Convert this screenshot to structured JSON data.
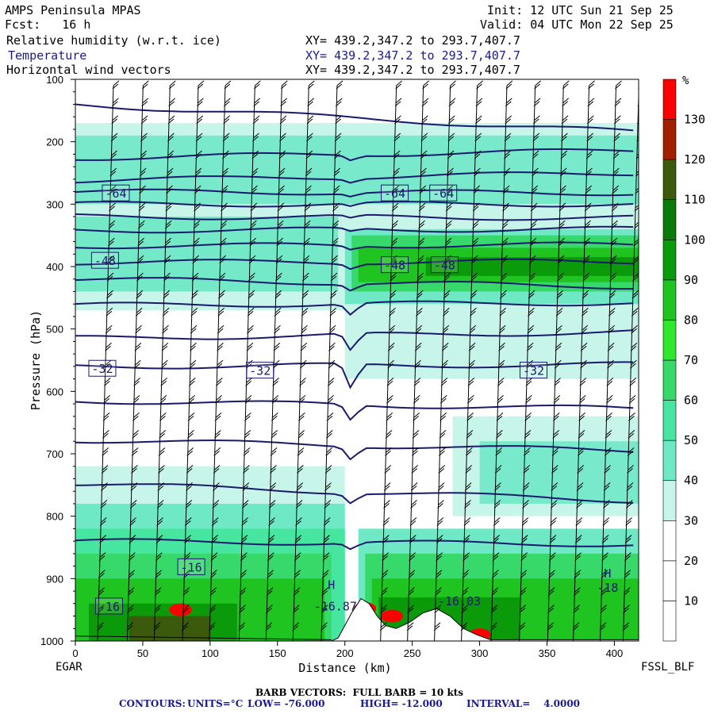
{
  "header": {
    "model": "AMPS Peninsula MPAS",
    "forecast": "Fcst:   16 h",
    "init": "Init: 12 UTC Sun 21 Sep 25",
    "valid": "Valid: 04 UTC Mon 22 Sep 25",
    "field1": "Relative humidity (w.r.t. ice)",
    "field2": "Temperature",
    "field3": "Horizontal wind vectors",
    "xy1": "XY= 439.2,347.2 to 293.7,407.7",
    "xy2": "XY= 439.2,347.2 to 293.7,407.7",
    "xy3": "XY= 439.2,347.2 to 293.7,407.7"
  },
  "footer": {
    "left_station": "EGAR",
    "right_station": "FSSL_BLF",
    "barb_note": "BARB VECTORS:  FULL BARB = 10 kts",
    "contours_label": "CONTOURS:",
    "units": "UNITS=°C",
    "low": "LOW= -76.000",
    "high": "HIGH= -12.000",
    "interval": "INTERVAL=    4.0000"
  },
  "colors": {
    "contour": "#1a1a6e",
    "rh_fills": [
      "#ffffff",
      "#ffffff",
      "#ffffff",
      "#c8f5ea",
      "#6fe8c6",
      "#47e6a0",
      "#38d96b",
      "#2ee82e",
      "#20c420",
      "#0a9a0a",
      "#0a7a0a",
      "#3c5a0c",
      "#a02000",
      "#ff0000"
    ]
  },
  "chart_data": {
    "type": "heatmap",
    "title": "Relative humidity (w.r.t. ice), Temperature, Horizontal wind vectors",
    "xlabel": "Distance (km)",
    "ylabel": "Pressure (hPa)",
    "xlim": [
      0,
      418
    ],
    "ylim": [
      1000,
      100
    ],
    "x_ticks": [
      0,
      50,
      100,
      150,
      200,
      250,
      300,
      350,
      400
    ],
    "y_ticks": [
      100,
      200,
      300,
      400,
      500,
      600,
      700,
      800,
      900,
      1000
    ],
    "colorbar": {
      "unit": "%",
      "levels": [
        0,
        10,
        20,
        30,
        40,
        50,
        60,
        70,
        80,
        90,
        100,
        110,
        120,
        130,
        140
      ],
      "labels": [
        10,
        20,
        30,
        40,
        50,
        60,
        70,
        80,
        90,
        100,
        110,
        120,
        130
      ]
    },
    "temperature_contours_c": [
      -76,
      -72,
      -68,
      -64,
      -60,
      -56,
      -52,
      -48,
      -44,
      -40,
      -36,
      -32,
      -28,
      -24,
      -20,
      -16,
      -12
    ],
    "contour_labels": [
      {
        "text": "-64",
        "x": 30,
        "p": 282
      },
      {
        "text": "-64",
        "x": 237,
        "p": 282
      },
      {
        "text": "-64",
        "x": 273,
        "p": 282
      },
      {
        "text": "-48",
        "x": 22,
        "p": 390
      },
      {
        "text": "-48",
        "x": 237,
        "p": 397
      },
      {
        "text": "-48",
        "x": 274,
        "p": 397
      },
      {
        "text": "-32",
        "x": 20,
        "p": 563
      },
      {
        "text": "-32",
        "x": 137,
        "p": 566
      },
      {
        "text": "-32",
        "x": 340,
        "p": 566
      },
      {
        "text": "-16",
        "x": 86,
        "p": 881
      },
      {
        "text": "-16",
        "x": 25,
        "p": 944
      }
    ],
    "point_labels": [
      {
        "text": "H",
        "x": 190,
        "p": 917
      },
      {
        "text": "-16.87",
        "x": 193,
        "p": 951
      },
      {
        "text": "H",
        "x": 395,
        "p": 898
      },
      {
        "text": "-18",
        "x": 395,
        "p": 921
      },
      {
        "text": "-16.03",
        "x": 285,
        "p": 943
      }
    ],
    "barbs": {
      "full_barb_kts": 10,
      "columns_km": [
        20,
        42,
        62,
        83,
        103,
        125,
        145,
        165,
        186,
        230,
        250,
        270,
        290,
        312,
        333,
        354,
        373,
        393,
        410
      ]
    }
  }
}
